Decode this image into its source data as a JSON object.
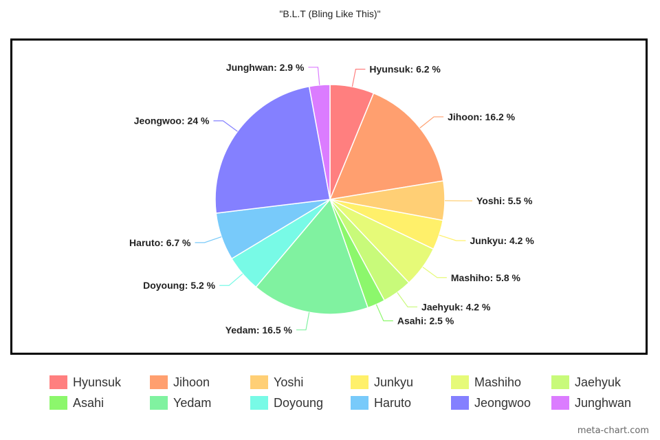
{
  "chart_data": {
    "type": "pie",
    "title": "\"B.L.T (Bling Like This)\"",
    "slices": [
      {
        "name": "Hyunsuk",
        "value": 6.2,
        "label": "Hyunsuk: 6.2 %",
        "color": "#ff7f7f"
      },
      {
        "name": "Jihoon",
        "value": 16.2,
        "label": "Jihoon: 16.2 %",
        "color": "#ff9f6f"
      },
      {
        "name": "Yoshi",
        "value": 5.5,
        "label": "Yoshi: 5.5 %",
        "color": "#ffcf75"
      },
      {
        "name": "Junkyu",
        "value": 4.2,
        "label": "Junkyu: 4.2 %",
        "color": "#fff06a"
      },
      {
        "name": "Mashiho",
        "value": 5.8,
        "label": "Mashiho: 5.8 %",
        "color": "#e6fa78"
      },
      {
        "name": "Jaehyuk",
        "value": 4.2,
        "label": "Jaehyuk: 4.2 %",
        "color": "#c8fa7a"
      },
      {
        "name": "Asahi",
        "value": 2.5,
        "label": "Asahi: 2.5 %",
        "color": "#8cf76c"
      },
      {
        "name": "Yedam",
        "value": 16.5,
        "label": "Yedam: 16.5 %",
        "color": "#80f2a0"
      },
      {
        "name": "Doyoung",
        "value": 5.2,
        "label": "Doyoung: 5.2 %",
        "color": "#78fae6"
      },
      {
        "name": "Haruto",
        "value": 6.7,
        "label": "Haruto: 6.7 %",
        "color": "#78cafa"
      },
      {
        "name": "Jeongwoo",
        "value": 24,
        "label": "Jeongwoo: 24 %",
        "color": "#8480ff"
      },
      {
        "name": "Junghwan",
        "value": 2.9,
        "label": "Junghwan: 2.9 %",
        "color": "#db7cff"
      }
    ],
    "legend_position": "bottom"
  },
  "watermark": "meta-chart.com"
}
